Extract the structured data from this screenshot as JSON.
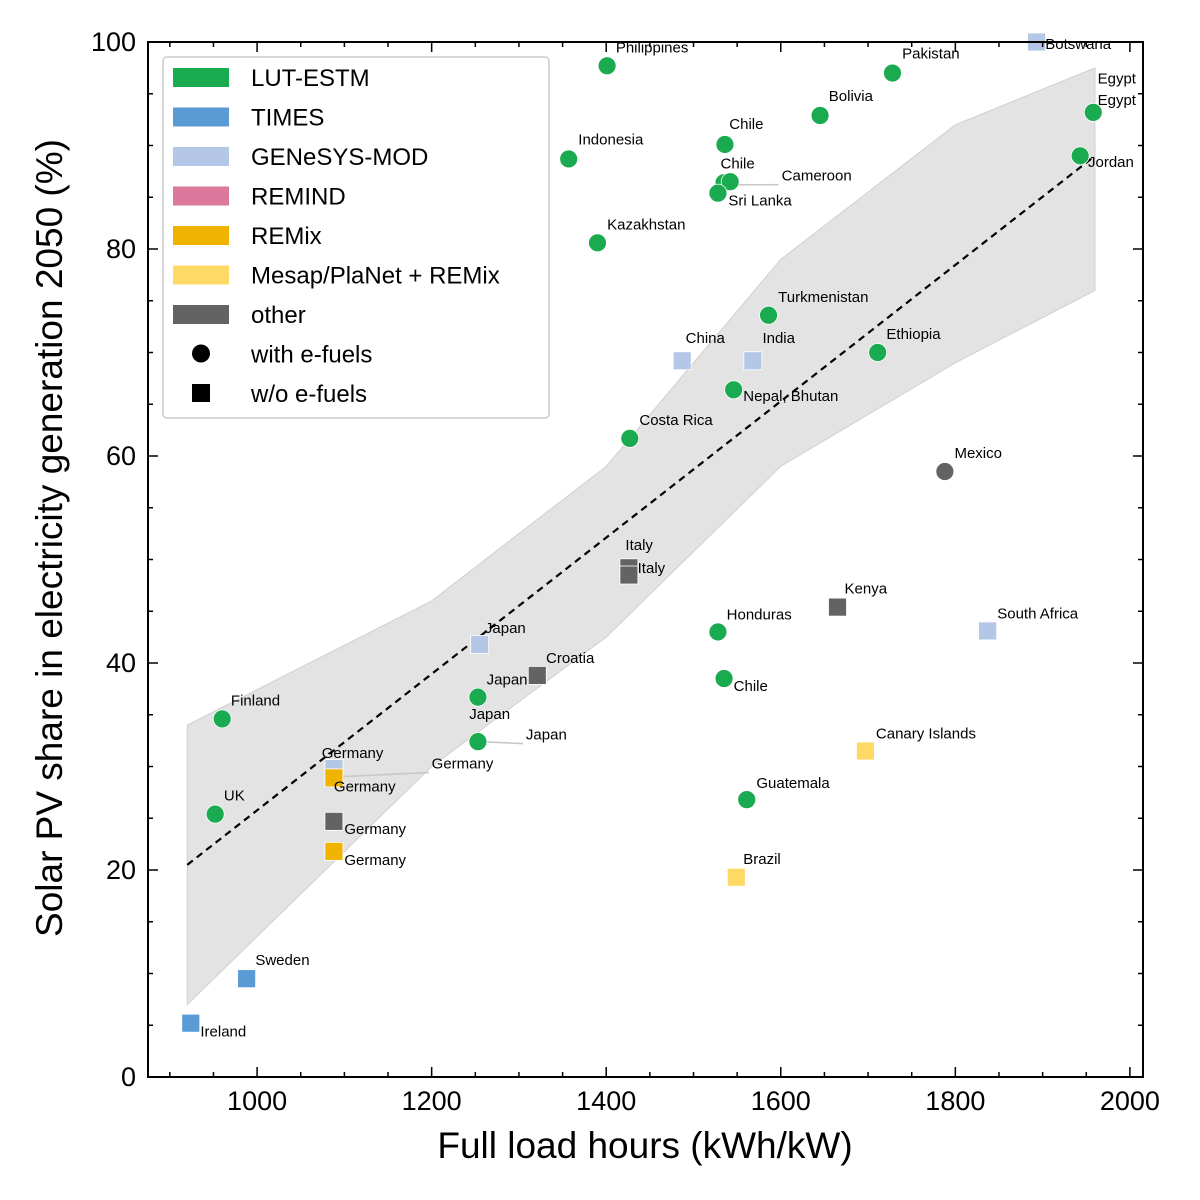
{
  "chart_data": {
    "type": "scatter",
    "xlabel": "Full load hours (kWh/kW)",
    "ylabel": "Solar PV share in electricity generation 2050 (%)",
    "xlim": [
      875,
      2015
    ],
    "ylim": [
      0,
      100
    ],
    "xticks": [
      1000,
      1200,
      1400,
      1600,
      1800,
      2000
    ],
    "yticks": [
      0,
      20,
      40,
      60,
      80,
      100
    ],
    "grid": false,
    "legend_placement": "top-left",
    "colors": {
      "LUT-ESTM": "#1aaa50",
      "TIMES": "#5b9bd5",
      "GENeSYS-MOD": "#b4c7e7",
      "REMIND": "#d9789a",
      "REMix": "#f0b400",
      "Mesap/PlaNet + REMix": "#ffd966",
      "other": "#636363"
    },
    "legend": [
      {
        "label": "LUT-ESTM",
        "kind": "patch",
        "model": "LUT-ESTM"
      },
      {
        "label": "TIMES",
        "kind": "patch",
        "model": "TIMES"
      },
      {
        "label": "GENeSYS-MOD",
        "kind": "patch",
        "model": "GENeSYS-MOD"
      },
      {
        "label": "REMIND",
        "kind": "patch",
        "model": "REMIND"
      },
      {
        "label": "REMix",
        "kind": "patch",
        "model": "REMix"
      },
      {
        "label": "Mesap/PlaNet + REMix",
        "kind": "patch",
        "model": "Mesap/PlaNet + REMix"
      },
      {
        "label": "other",
        "kind": "patch",
        "model": "other"
      },
      {
        "label": "with e-fuels",
        "kind": "circle"
      },
      {
        "label": "w/o e-fuels",
        "kind": "square"
      }
    ],
    "trend_line": {
      "style": "dashed",
      "points": [
        [
          920,
          20.5
        ],
        [
          1960,
          89
        ]
      ]
    },
    "confidence_band": {
      "upper": [
        [
          920,
          34
        ],
        [
          1200,
          46
        ],
        [
          1400,
          59
        ],
        [
          1600,
          79
        ],
        [
          1800,
          92
        ],
        [
          1960,
          97.5
        ]
      ],
      "lower": [
        [
          920,
          7
        ],
        [
          1200,
          30
        ],
        [
          1400,
          42.5
        ],
        [
          1600,
          59
        ],
        [
          1800,
          69
        ],
        [
          1960,
          76
        ]
      ]
    },
    "points": [
      {
        "label": "Philippines",
        "model": "LUT-ESTM",
        "marker": "circle",
        "x": 1401,
        "y": 97.7
      },
      {
        "label": "Pakistan",
        "model": "LUT-ESTM",
        "marker": "circle",
        "x": 1728,
        "y": 97.0
      },
      {
        "label": "Bolivia",
        "model": "LUT-ESTM",
        "marker": "circle",
        "x": 1645,
        "y": 92.9
      },
      {
        "label": "Chile",
        "model": "LUT-ESTM",
        "marker": "circle",
        "x": 1536,
        "y": 90.1
      },
      {
        "label": "Indonesia",
        "model": "LUT-ESTM",
        "marker": "circle",
        "x": 1357,
        "y": 88.7
      },
      {
        "label": "Chile",
        "model": "LUT-ESTM",
        "marker": "circle",
        "x": 1535,
        "y": 86.4
      },
      {
        "label": "Cameroon",
        "model": "LUT-ESTM",
        "marker": "circle",
        "x": 1542,
        "y": 86.5
      },
      {
        "label": "Sri Lanka",
        "model": "LUT-ESTM",
        "marker": "circle",
        "x": 1528,
        "y": 85.4
      },
      {
        "label": "Kazakhstan",
        "model": "LUT-ESTM",
        "marker": "circle",
        "x": 1390,
        "y": 80.6
      },
      {
        "label": "Egypt",
        "model": "LUT-ESTM",
        "marker": "circle",
        "x": 1958,
        "y": 93.2
      },
      {
        "label": "Jordan",
        "model": "LUT-ESTM",
        "marker": "circle",
        "x": 1943,
        "y": 89.0
      },
      {
        "label": "Turkmenistan",
        "model": "LUT-ESTM",
        "marker": "circle",
        "x": 1586,
        "y": 73.6
      },
      {
        "label": "Ethiopia",
        "model": "LUT-ESTM",
        "marker": "circle",
        "x": 1711,
        "y": 70.0
      },
      {
        "label": "Nepal, Bhutan",
        "model": "LUT-ESTM",
        "marker": "circle",
        "x": 1546,
        "y": 66.4
      },
      {
        "label": "Costa Rica",
        "model": "LUT-ESTM",
        "marker": "circle",
        "x": 1427,
        "y": 61.7
      },
      {
        "label": "Honduras",
        "model": "LUT-ESTM",
        "marker": "circle",
        "x": 1528,
        "y": 43.0
      },
      {
        "label": "Chile",
        "model": "LUT-ESTM",
        "marker": "circle",
        "x": 1535,
        "y": 38.5
      },
      {
        "label": "Japan",
        "model": "LUT-ESTM",
        "marker": "circle",
        "x": 1253,
        "y": 36.7
      },
      {
        "label": "Japan",
        "model": "LUT-ESTM",
        "marker": "circle",
        "x": 1253,
        "y": 32.4
      },
      {
        "label": "Guatemala",
        "model": "LUT-ESTM",
        "marker": "circle",
        "x": 1561,
        "y": 26.8
      },
      {
        "label": "Finland",
        "model": "LUT-ESTM",
        "marker": "circle",
        "x": 960,
        "y": 34.6
      },
      {
        "label": "UK",
        "model": "LUT-ESTM",
        "marker": "circle",
        "x": 952,
        "y": 25.4
      },
      {
        "label": "Mexico",
        "model": "other",
        "marker": "circle",
        "x": 1788,
        "y": 58.5
      },
      {
        "label": "Botswana",
        "model": "GENeSYS-MOD",
        "marker": "square",
        "x": 1893,
        "y": 100.0
      },
      {
        "label": "China",
        "model": "GENeSYS-MOD",
        "marker": "square",
        "x": 1487,
        "y": 69.2
      },
      {
        "label": "India",
        "model": "GENeSYS-MOD",
        "marker": "square",
        "x": 1568,
        "y": 69.2
      },
      {
        "label": "South Africa",
        "model": "GENeSYS-MOD",
        "marker": "square",
        "x": 1837,
        "y": 43.1
      },
      {
        "label": "Japan",
        "model": "GENeSYS-MOD",
        "marker": "square",
        "x": 1255,
        "y": 41.8
      },
      {
        "label": "Germany",
        "model": "GENeSYS-MOD",
        "marker": "square",
        "x": 1088,
        "y": 29.8
      },
      {
        "label": "Italy",
        "model": "other",
        "marker": "square",
        "x": 1426,
        "y": 49.2
      },
      {
        "label": "Italy",
        "model": "other",
        "marker": "square",
        "x": 1426,
        "y": 48.5
      },
      {
        "label": "Kenya",
        "model": "other",
        "marker": "square",
        "x": 1665,
        "y": 45.4
      },
      {
        "label": "Croatia",
        "model": "other",
        "marker": "square",
        "x": 1321,
        "y": 38.8
      },
      {
        "label": "Germany",
        "model": "other",
        "marker": "square",
        "x": 1088,
        "y": 24.7
      },
      {
        "label": "Germany",
        "model": "REMix",
        "marker": "square",
        "x": 1088,
        "y": 28.9
      },
      {
        "label": "Germany",
        "model": "REMix",
        "marker": "square",
        "x": 1088,
        "y": 21.8
      },
      {
        "label": "Canary Islands",
        "model": "Mesap/PlaNet + REMix",
        "marker": "square",
        "x": 1697,
        "y": 31.5
      },
      {
        "label": "Brazil",
        "model": "Mesap/PlaNet + REMix",
        "marker": "square",
        "x": 1549,
        "y": 19.3
      },
      {
        "label": "Sweden",
        "model": "TIMES",
        "marker": "square",
        "x": 988,
        "y": 9.5
      },
      {
        "label": "Ireland",
        "model": "TIMES",
        "marker": "square",
        "x": 924,
        "y": 5.2
      }
    ],
    "annotations": [
      {
        "text": "Philippines",
        "x": 1411,
        "y": 99.0
      },
      {
        "text": "Pakistan",
        "x": 1739,
        "y": 98.4
      },
      {
        "text": "Bolivia",
        "x": 1655,
        "y": 94.3
      },
      {
        "text": "Chile",
        "x": 1541,
        "y": 91.6
      },
      {
        "text": "Indonesia",
        "x": 1368,
        "y": 90.1
      },
      {
        "text": "Chile",
        "x": 1531,
        "y": 87.8
      },
      {
        "text": "Cameroon",
        "x": 1601,
        "y": 86.6,
        "leader": [
          1545,
          86.2
        ]
      },
      {
        "text": "Sri Lanka",
        "x": 1540,
        "y": 84.2
      },
      {
        "text": "Kazakhstan",
        "x": 1401,
        "y": 81.9
      },
      {
        "text": "Botswana",
        "x": 1903,
        "y": 99.3
      },
      {
        "text": "Egypt",
        "x": 1963,
        "y": 96.0
      },
      {
        "text": "Egypt",
        "x": 1963,
        "y": 93.9
      },
      {
        "text": "Jordan",
        "x": 1952,
        "y": 87.9
      },
      {
        "text": "Turkmenistan",
        "x": 1597,
        "y": 74.9
      },
      {
        "text": "Ethiopia",
        "x": 1721,
        "y": 71.3
      },
      {
        "text": "China",
        "x": 1491,
        "y": 70.9
      },
      {
        "text": "India",
        "x": 1579,
        "y": 70.9
      },
      {
        "text": "Nepal, Bhutan",
        "x": 1557,
        "y": 65.3
      },
      {
        "text": "Costa Rica",
        "x": 1438,
        "y": 63.0
      },
      {
        "text": "Mexico",
        "x": 1799,
        "y": 59.8
      },
      {
        "text": "Italy",
        "x": 1422,
        "y": 50.9
      },
      {
        "text": "Italy",
        "x": 1436,
        "y": 48.7
      },
      {
        "text": "Kenya",
        "x": 1673,
        "y": 46.7
      },
      {
        "text": "South Africa",
        "x": 1848,
        "y": 44.3
      },
      {
        "text": "Honduras",
        "x": 1538,
        "y": 44.2
      },
      {
        "text": "Japan",
        "x": 1261,
        "y": 42.9
      },
      {
        "text": "Croatia",
        "x": 1331,
        "y": 40.0
      },
      {
        "text": "Japan",
        "x": 1263,
        "y": 37.9
      },
      {
        "text": "Chile",
        "x": 1546,
        "y": 37.3
      },
      {
        "text": "Finland",
        "x": 970,
        "y": 35.9
      },
      {
        "text": "Japan",
        "x": 1243,
        "y": 34.6
      },
      {
        "text": "Japan",
        "x": 1308,
        "y": 32.6,
        "leader": [
          1256,
          32.4
        ]
      },
      {
        "text": "Canary Islands",
        "x": 1709,
        "y": 32.7
      },
      {
        "text": "Germany",
        "x": 1074,
        "y": 30.8
      },
      {
        "text": "Germany",
        "x": 1200,
        "y": 29.8,
        "leader": [
          1092,
          29.0
        ]
      },
      {
        "text": "Germany",
        "x": 1088,
        "y": 27.6
      },
      {
        "text": "Guatemala",
        "x": 1572,
        "y": 27.9
      },
      {
        "text": "UK",
        "x": 962,
        "y": 26.7
      },
      {
        "text": "Germany",
        "x": 1100,
        "y": 23.5
      },
      {
        "text": "Germany",
        "x": 1100,
        "y": 20.5
      },
      {
        "text": "Brazil",
        "x": 1557,
        "y": 20.6
      },
      {
        "text": "Sweden",
        "x": 998,
        "y": 10.8
      },
      {
        "text": "Ireland",
        "x": 935,
        "y": 3.9
      }
    ]
  }
}
